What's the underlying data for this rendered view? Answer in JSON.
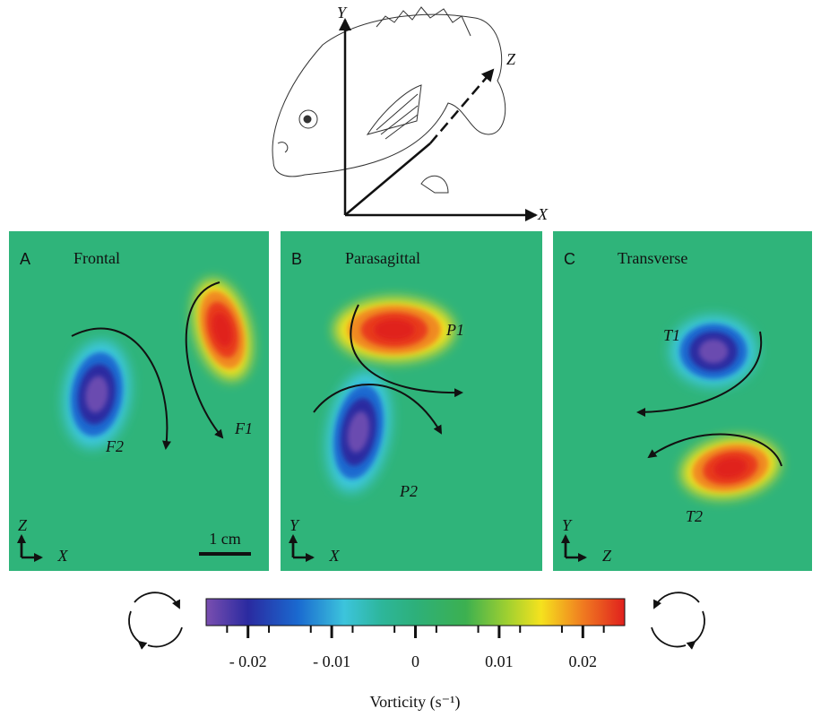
{
  "figure": {
    "fish_axes": {
      "y": "Y",
      "z": "Z",
      "x": "X"
    },
    "panels": [
      {
        "letter": "A",
        "title": "Frontal",
        "labels": [
          "F1",
          "F2"
        ],
        "axes": [
          "Z",
          "X"
        ],
        "scale": "1 cm"
      },
      {
        "letter": "B",
        "title": "Parasagittal",
        "labels": [
          "P1",
          "P2"
        ],
        "axes": [
          "Y",
          "X"
        ]
      },
      {
        "letter": "C",
        "title": "Transverse",
        "labels": [
          "T1",
          "T2"
        ],
        "axes": [
          "Y",
          "Z"
        ]
      }
    ],
    "colorbar": {
      "ticks": [
        "- 0.02",
        "- 0.01",
        "0",
        "0.01",
        "0.02"
      ],
      "label": "Vorticity (s⁻¹)"
    }
  }
}
